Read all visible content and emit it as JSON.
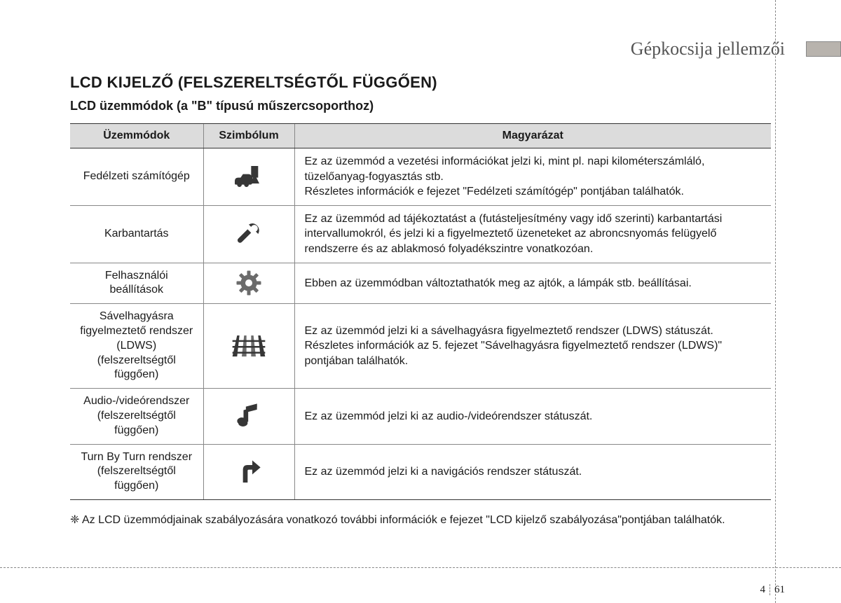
{
  "header": {
    "chapter_title": "Gépkocsija jellemzői"
  },
  "headings": {
    "main": "LCD KIJELZŐ (FELSZERELTSÉGTŐL FÜGGŐEN)",
    "sub": "LCD üzemmódok (a \"B\" típusú műszercsoporthoz)"
  },
  "table": {
    "columns": {
      "modes": "Üzemmódok",
      "symbol": "Szimbólum",
      "desc": "Magyarázat"
    },
    "col_widths": {
      "modes": 190,
      "symbol": 130
    },
    "header_bg": "#dcdcdc",
    "border_color": "#888888",
    "border_color_heavy": "#333333",
    "rows": [
      {
        "mode": "Fedélzeti számítógép",
        "icon": "car-fuel-icon",
        "desc": "Ez az üzemmód a vezetési információkat jelzi ki, mint pl. napi kilométerszámláló, tüzelőanyag-fogyasztás stb.\nRészletes információk e fejezet \"Fedélzeti számítógép\" pontjában találhatók."
      },
      {
        "mode": "Karbantartás",
        "icon": "wrench-icon",
        "desc": "Ez az üzemmód ad tájékoztatást a (futásteljesítmény vagy idő szerinti) karbantartási intervallumokról, és jelzi ki a figyelmeztető üzeneteket az abroncsnyomás felügyelő rendszerre és az ablakmosó folyadékszintre vonatkozóan."
      },
      {
        "mode": "Felhasználói\nbeállítások",
        "icon": "gear-icon",
        "desc": "Ebben az üzemmódban változtathatók meg az ajtók, a lámpák stb. beállításai."
      },
      {
        "mode": "Sávelhagyásra figyelmeztető rendszer (LDWS) (felszereltségtől függően)",
        "icon": "road-icon",
        "desc": "Ez az üzemmód jelzi ki a sávelhagyásra figyelmeztető rendszer (LDWS) státuszát.\nRészletes információk az 5. fejezet \"Sávelhagyásra figyelmeztető rendszer (LDWS)\" pontjában találhatók."
      },
      {
        "mode": "Audio-/videórendszer (felszereltségtől függően)",
        "icon": "music-note-icon",
        "desc": "Ez az üzemmód jelzi ki az audio-/videórendszer státuszát."
      },
      {
        "mode": "Turn By Turn rendszer (felszereltségtől függően)",
        "icon": "turn-arrow-icon",
        "desc": "Ez az üzemmód jelzi ki a navigációs rendszer státuszát."
      }
    ]
  },
  "footnote": "❈ Az LCD üzemmódjainak szabályozására vonatkozó további információk e fejezet \"LCD kijelző szabályozása\"pontjában találhatók.",
  "page": {
    "chapter": "4",
    "number": "61"
  },
  "colors": {
    "page_bg": "#ffffff",
    "text": "#1a1a1a",
    "header_grey": "#b8b3ad",
    "chapter_title": "#555555",
    "icon_dark": "#363636",
    "icon_grey": "#6b6b6b"
  },
  "fonts": {
    "chapter_title_size": 26,
    "main_heading_size": 22,
    "sub_heading_size": 18,
    "body_size": 16,
    "footer_size": 15
  }
}
